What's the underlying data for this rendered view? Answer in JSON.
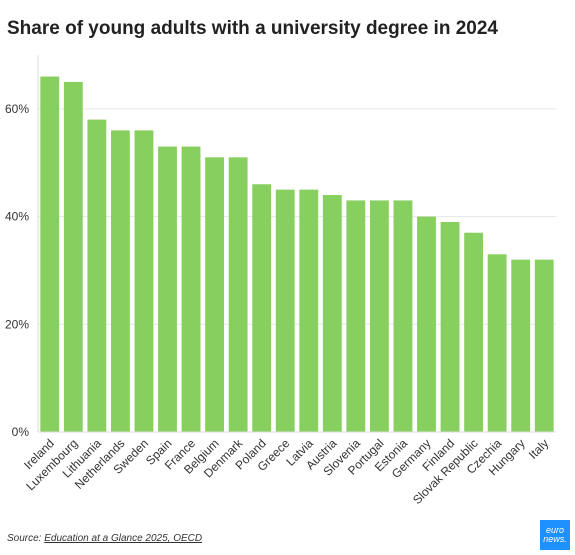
{
  "chart_data": {
    "type": "bar",
    "title": "Share of young adults with a university degree in 2024",
    "categories": [
      "Ireland",
      "Luxembourg",
      "Lithuania",
      "Netherlands",
      "Sweden",
      "Spain",
      "France",
      "Belgium",
      "Denmark",
      "Poland",
      "Greece",
      "Latvia",
      "Austria",
      "Slovenia",
      "Portugal",
      "Estonia",
      "Germany",
      "Finland",
      "Slovak Republic",
      "Czechia",
      "Hungary",
      "Italy"
    ],
    "values": [
      66,
      65,
      58,
      56,
      56,
      53,
      53,
      51,
      51,
      46,
      45,
      45,
      44,
      43,
      43,
      43,
      40,
      39,
      37,
      33,
      32,
      32
    ],
    "yticks": [
      "0%",
      "20%",
      "40%",
      "60%"
    ],
    "ylim": [
      0,
      70
    ],
    "xlabel": "",
    "ylabel": "",
    "grid": true,
    "bar_color": "#87cf5f",
    "source_prefix": "Source: ",
    "source_link": "Education at a Glance 2025, OECD"
  },
  "logo": {
    "line1": "euro",
    "line2": "news."
  }
}
